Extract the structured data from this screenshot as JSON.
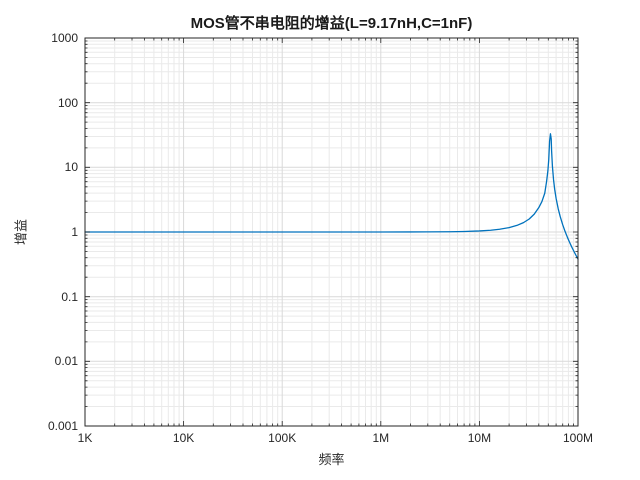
{
  "figure": {
    "background": "#ffffff"
  },
  "chart_data": {
    "type": "line",
    "title": "MOS管不串电阻的增益(L=9.17nH,C=1nF)",
    "xlabel": "频率",
    "ylabel": "增益",
    "x_scale": "log",
    "y_scale": "log",
    "xlim": [
      1000,
      100000000
    ],
    "ylim": [
      0.001,
      1000
    ],
    "x_tick_values": [
      1000,
      10000,
      100000,
      1000000,
      10000000,
      100000000
    ],
    "x_tick_labels": [
      "1K",
      "10K",
      "100K",
      "1M",
      "10M",
      "100M"
    ],
    "y_tick_values": [
      1000,
      100,
      10,
      1,
      0.1,
      0.01,
      0.001
    ],
    "y_tick_labels": [
      "1000",
      "100",
      "10",
      "1",
      "0.1",
      "0.01",
      "0.001"
    ],
    "grid": "major+minor",
    "legend": "none",
    "resonance_peak": {
      "frequency_hz": 52550000,
      "gain": 33
    },
    "series": [
      {
        "name": "gain-vs-frequency",
        "x": [
          1000,
          3000,
          10000,
          30000,
          100000,
          300000,
          1000000,
          2000000,
          3000000,
          5000000,
          7000000,
          10000000,
          13000000,
          16000000,
          20000000,
          24000000,
          28000000,
          32000000,
          36000000,
          40000000,
          43000000,
          46000000,
          48000000,
          49500000,
          50500000,
          51500000,
          52550000,
          53500000,
          54000000,
          55000000,
          56500000,
          58000000,
          60000000,
          63000000,
          66000000,
          70000000,
          74000000,
          78000000,
          82000000,
          86000000,
          90000000,
          95000000,
          100000000
        ],
        "y": [
          1,
          1,
          1,
          1,
          1,
          1,
          1.0004,
          1.0015,
          1.0033,
          1.0091,
          1.0181,
          1.0376,
          1.0652,
          1.1023,
          1.1693,
          1.2636,
          1.3958,
          1.589,
          1.889,
          2.377,
          2.942,
          3.974,
          6.03,
          8.85,
          13.07,
          25.3,
          33,
          27.4,
          17.86,
          10.48,
          6.41,
          4.583,
          3.294,
          2.286,
          1.732,
          1.292,
          1.017,
          0.8312,
          0.6969,
          0.5958,
          0.5173,
          0.4409,
          0.3815
        ]
      }
    ]
  },
  "colors": {
    "line": "#0072BD",
    "axis": "#262626",
    "grid_major": "#d9d9d9",
    "grid_minor": "#eaeaea",
    "background": "#ffffff"
  }
}
